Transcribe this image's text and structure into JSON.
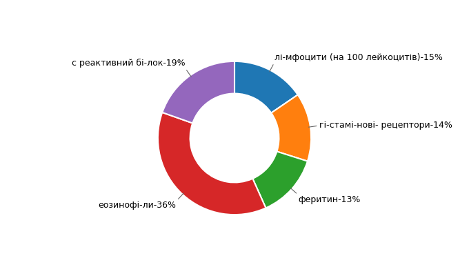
{
  "chart_data": {
    "type": "donut",
    "categories": [
      "лі-мфоцити (на 100 лейкоцитів)-15%",
      "гі-стамі-нові- рецептори-14%",
      "феритин-13%",
      "еозинофі-ли-36%",
      "с реактивний бі-лок-19%"
    ],
    "values": [
      15,
      14,
      13,
      36,
      19
    ]
  }
}
